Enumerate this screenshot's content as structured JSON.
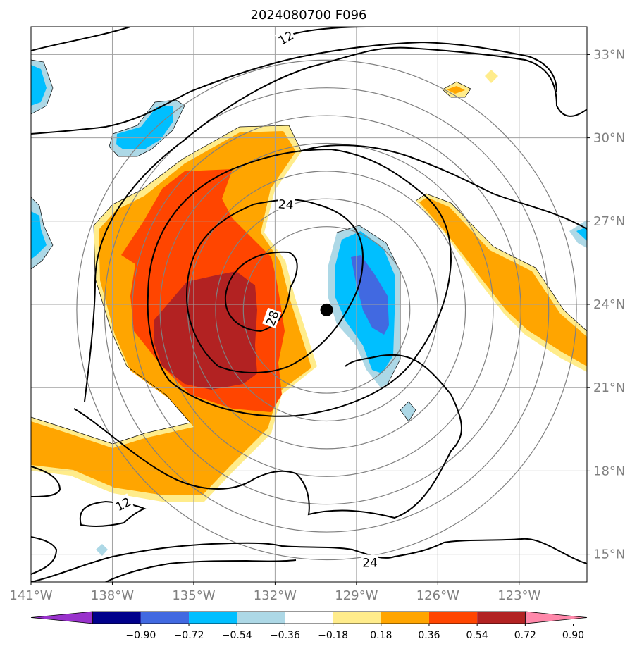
{
  "title": "2024080700 F096",
  "map": {
    "lon_range": [
      -141,
      -120.5
    ],
    "lat_range": [
      14,
      34
    ],
    "lat_ticks": [
      {
        "value": 33,
        "label": "33°N"
      },
      {
        "value": 30,
        "label": "30°N"
      },
      {
        "value": 27,
        "label": "27°N"
      },
      {
        "value": 24,
        "label": "24°N"
      },
      {
        "value": 21,
        "label": "21°N"
      },
      {
        "value": 18,
        "label": "18°N"
      },
      {
        "value": 15,
        "label": "15°N"
      }
    ],
    "lon_ticks": [
      {
        "value": -141,
        "label": "141°W"
      },
      {
        "value": -138,
        "label": "138°W"
      },
      {
        "value": -135,
        "label": "135°W"
      },
      {
        "value": -132,
        "label": "132°W"
      },
      {
        "value": -129,
        "label": "129°W"
      },
      {
        "value": -126,
        "label": "126°W"
      },
      {
        "value": -123,
        "label": "123°W"
      }
    ],
    "storm_center": {
      "lon": -130.1,
      "lat": 23.8
    },
    "range_ring_radii_deg": [
      3,
      4,
      5,
      6,
      7,
      8,
      9
    ],
    "contour_labels": [
      {
        "text": "12",
        "lon": -131.6,
        "lat": 33.6,
        "angle": -30
      },
      {
        "text": "24",
        "lon": -131.6,
        "lat": 27.6,
        "angle": 5
      },
      {
        "text": "28",
        "lon": -132.1,
        "lat": 23.5,
        "angle": -70
      },
      {
        "text": "12",
        "lon": -137.6,
        "lat": 16.8,
        "angle": -28
      },
      {
        "text": "24",
        "lon": -128.5,
        "lat": 14.7,
        "angle": 0
      }
    ],
    "grid": true
  },
  "colorbar": {
    "levels": [
      "−0.90",
      "−0.72",
      "−0.54",
      "−0.36",
      "−0.18",
      "0.18",
      "0.36",
      "0.54",
      "0.72",
      "0.90"
    ],
    "colors": [
      "#9932cc",
      "#00008b",
      "#4169e1",
      "#00bfff",
      "#add8e6",
      "#ffffff",
      "#ffec8b",
      "#ffa500",
      "#ff4500",
      "#b22222",
      "#ff88aa"
    ],
    "extend": "both"
  }
}
